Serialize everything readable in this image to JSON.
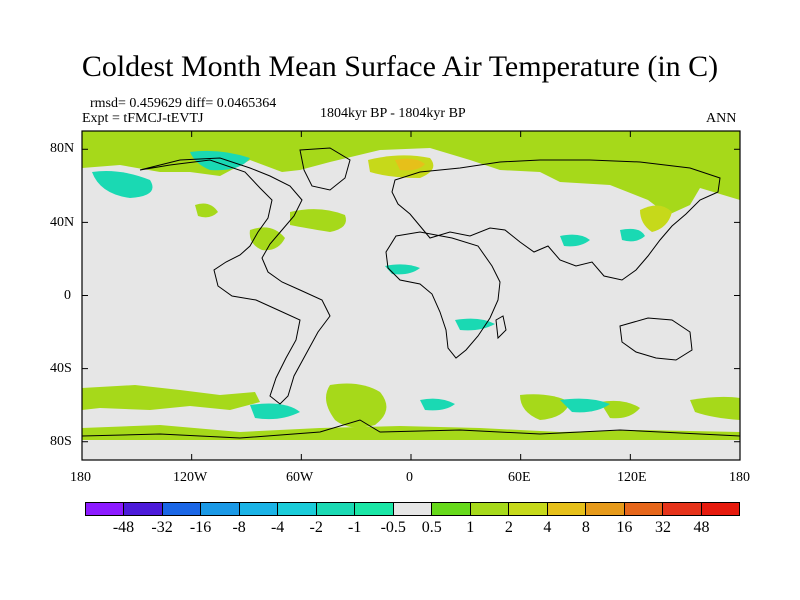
{
  "header": {
    "title": "Coldest Month Mean Surface Air Temperature (in C)",
    "stats": "rmsd= 0.459629 diff= 0.0465364",
    "experiment": "Expt = tFMCJ-tEVTJ",
    "period": "1804kyr BP - 1804kyr BP",
    "season": "ANN"
  },
  "map": {
    "projection": "cylindrical equidistant",
    "lon_range": [
      -180,
      180
    ],
    "lat_range": [
      -90,
      90
    ],
    "background_color": "#e6e6e6",
    "y_ticks": [
      "80N",
      "40N",
      "0",
      "40S",
      "80S"
    ],
    "x_ticks": [
      "180",
      "120W",
      "60W",
      "0",
      "60E",
      "120E",
      "180"
    ]
  },
  "colorbar": {
    "labels": [
      "-48",
      "-32",
      "-16",
      "-8",
      "-4",
      "-2",
      "-1",
      "-0.5",
      "0.5",
      "1",
      "2",
      "4",
      "8",
      "16",
      "32",
      "48"
    ],
    "colors": [
      "#8c1aff",
      "#4c1ad9",
      "#1a66e6",
      "#1a99e6",
      "#1ab3e6",
      "#1accd9",
      "#1ad9b3",
      "#1ae6a6",
      "#e6e6e6",
      "#66d91a",
      "#a6d91a",
      "#c6d91a",
      "#e6c01a",
      "#e69a1a",
      "#e6661a",
      "#e6331a",
      "#e61a0d"
    ]
  }
}
